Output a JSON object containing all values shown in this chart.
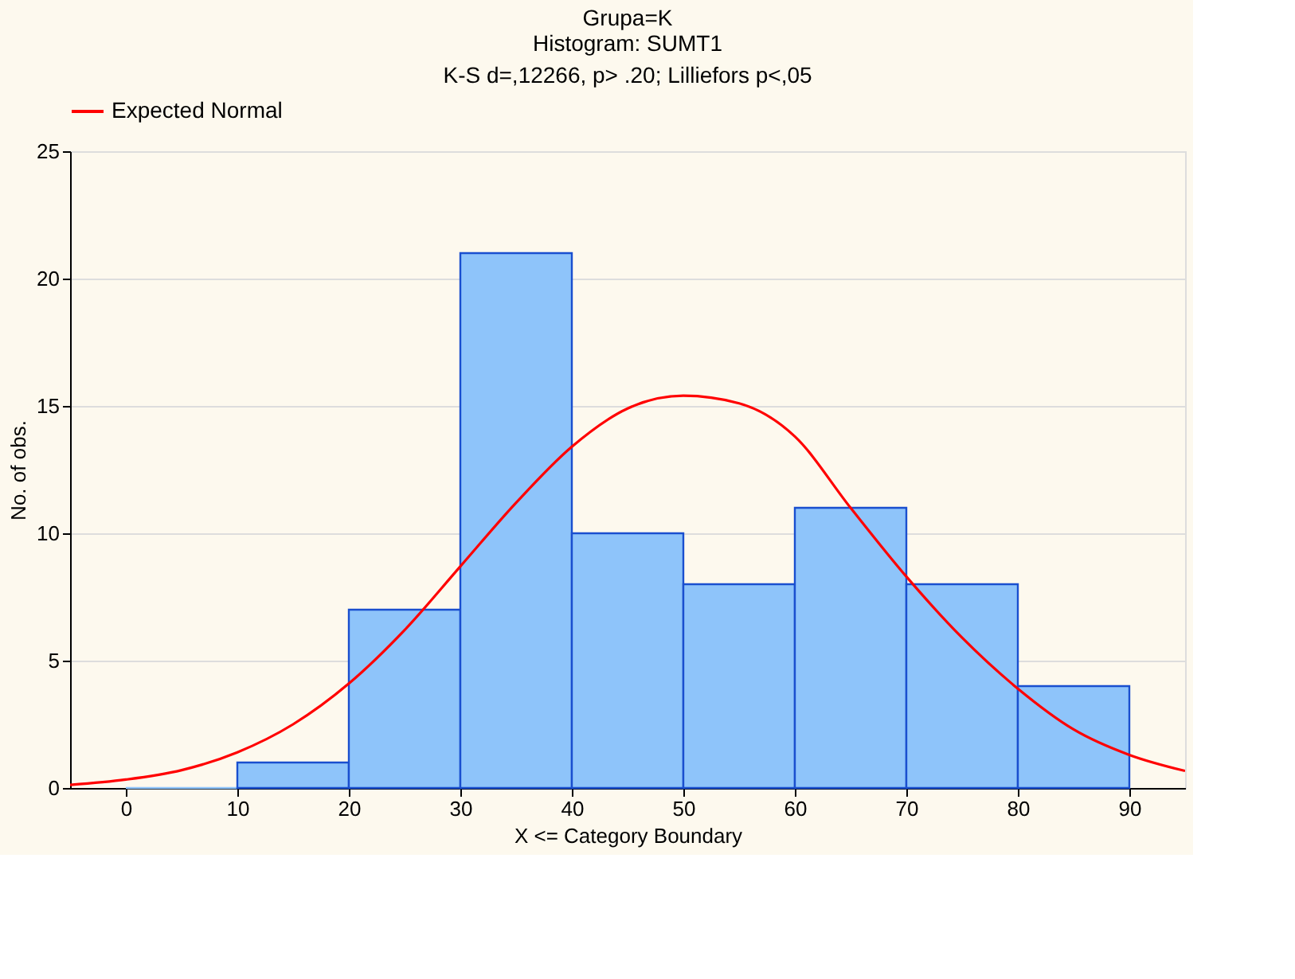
{
  "chart_data": {
    "type": "histogram",
    "title": [
      "Grupa=K",
      "Histogram: SUMT1"
    ],
    "subtitle": "K-S d=,12266, p> .20; Lilliefors p<,05",
    "xlabel": "X <= Category Boundary",
    "ylabel": "No. of obs.",
    "bins": [
      0,
      10,
      20,
      30,
      40,
      50,
      60,
      70,
      80,
      90
    ],
    "series": [
      {
        "type": "histogram",
        "color": "#8ec4fa",
        "values": [
          0,
          1,
          7,
          21,
          10,
          8,
          11,
          8,
          4
        ]
      },
      {
        "type": "line",
        "name": "Expected Normal",
        "color": "#ff0000",
        "x": [
          -5,
          0,
          5,
          10,
          15,
          20,
          25,
          30,
          35,
          40,
          45,
          50,
          55,
          60,
          65,
          70,
          75,
          80,
          85,
          90,
          95
        ],
        "values": [
          0.12,
          0.33,
          0.7,
          1.4,
          2.5,
          4.1,
          6.2,
          8.7,
          11.2,
          13.4,
          14.9,
          15.4,
          15.1,
          13.8,
          11.0,
          8.3,
          5.9,
          3.9,
          2.3,
          1.3,
          0.67
        ]
      }
    ],
    "xlim": [
      -5,
      95
    ],
    "xticks": [
      0,
      10,
      20,
      30,
      40,
      50,
      60,
      70,
      80,
      90
    ],
    "ylim": [
      0,
      25
    ],
    "yticks": [
      0,
      5,
      10,
      15,
      20,
      25
    ],
    "grid": "y",
    "legend": "top"
  }
}
